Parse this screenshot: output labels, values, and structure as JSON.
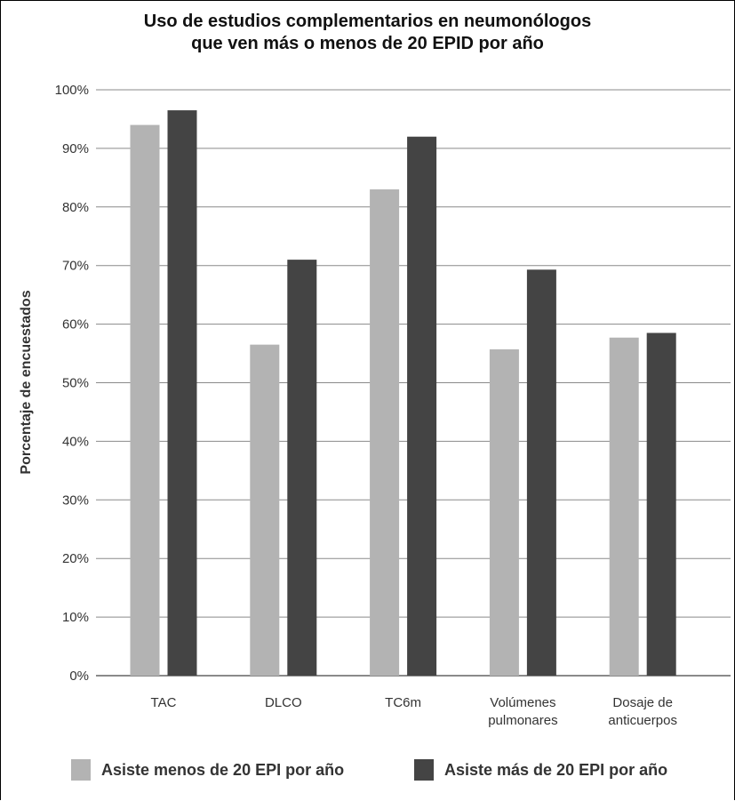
{
  "chart_data": {
    "type": "bar",
    "title_lines": [
      "Uso de estudios complementarios en neumonólogos",
      "que ven más o menos de 20 EPID por año"
    ],
    "ylabel": "Porcentaje de encuestados",
    "xlabel": "",
    "ylim": [
      0,
      100
    ],
    "yticks": [
      0,
      10,
      20,
      30,
      40,
      50,
      60,
      70,
      80,
      90,
      100
    ],
    "ytick_labels": [
      "0%",
      "10%",
      "20%",
      "30%",
      "40%",
      "50%",
      "60%",
      "70%",
      "80%",
      "90%",
      "100%"
    ],
    "grid": true,
    "legend_position": "bottom",
    "categories": [
      [
        "TAC"
      ],
      [
        "DLCO"
      ],
      [
        "TC6m"
      ],
      [
        "Volúmenes",
        "pulmonares"
      ],
      [
        "Dosaje de",
        "anticuerpos"
      ]
    ],
    "series": [
      {
        "name": "Asiste menos de 20 EPI por año",
        "color": "#b3b3b3",
        "values": [
          94,
          56.5,
          83,
          55.7,
          57.7
        ]
      },
      {
        "name": "Asiste más de 20 EPI por año",
        "color": "#444444",
        "values": [
          96.5,
          71,
          92,
          69.3,
          58.5
        ]
      }
    ]
  }
}
